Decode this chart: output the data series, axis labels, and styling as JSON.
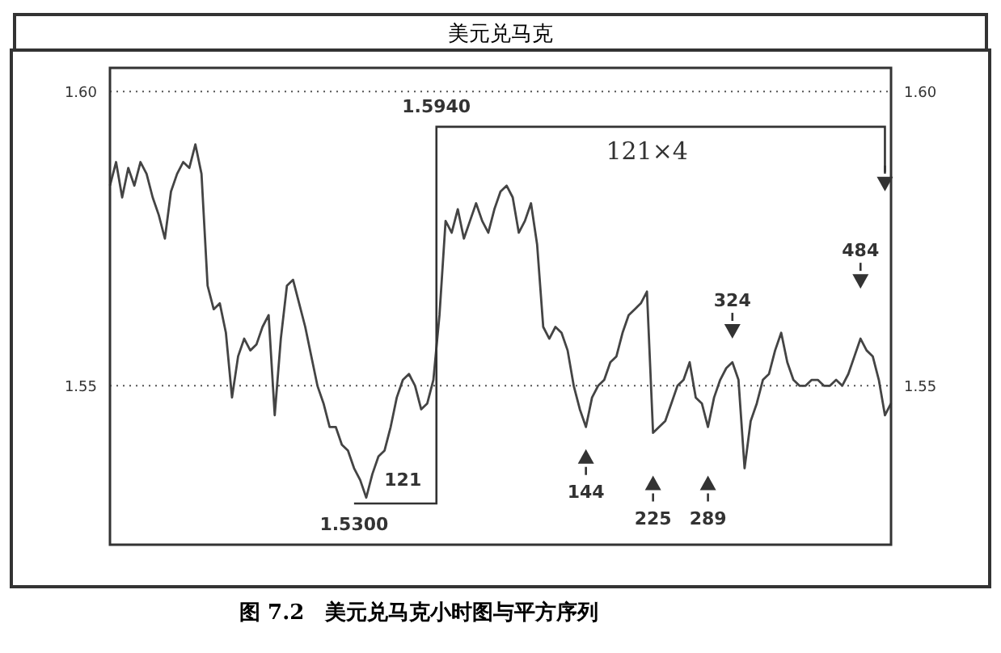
{
  "chart_data": {
    "type": "line",
    "title": "美元兑马克",
    "categories": [
      null,
      null,
      null,
      null,
      null,
      null,
      null,
      null,
      null,
      null,
      null,
      null,
      null,
      null,
      null,
      null,
      null,
      null,
      null,
      null,
      null,
      null,
      null,
      null,
      null,
      null,
      null,
      null,
      null,
      null,
      null,
      null,
      null,
      null,
      null,
      null,
      null,
      null,
      null,
      null,
      null,
      null,
      null,
      null,
      null,
      null,
      null,
      null,
      null,
      null,
      null,
      null,
      null,
      null,
      null,
      null,
      null,
      null,
      null,
      null,
      null,
      null,
      null,
      null,
      null,
      null,
      null,
      null,
      null,
      null,
      null,
      null,
      null,
      null,
      null,
      null,
      null,
      null,
      null,
      null,
      null,
      null,
      null,
      null,
      null,
      null,
      null,
      null,
      null,
      null,
      null,
      null,
      null,
      null,
      null,
      null,
      null,
      null,
      null,
      null,
      null,
      null,
      null,
      null,
      null,
      null,
      null,
      null,
      null,
      null,
      null,
      null,
      null,
      null,
      null,
      null,
      null,
      null,
      null,
      null,
      null,
      null,
      null,
      null,
      null,
      null,
      null,
      null,
      null
    ],
    "series": [
      {
        "color": "#444444",
        "values": [
          1.584,
          1.588,
          1.582,
          1.587,
          1.584,
          1.588,
          1.586,
          1.582,
          1.579,
          1.575,
          1.583,
          1.586,
          1.588,
          1.587,
          1.591,
          1.586,
          1.567,
          1.563,
          1.564,
          1.559,
          1.548,
          1.555,
          1.558,
          1.556,
          1.557,
          1.56,
          1.562,
          1.545,
          1.558,
          1.567,
          1.568,
          1.564,
          1.56,
          1.555,
          1.55,
          1.547,
          1.543,
          1.543,
          1.54,
          1.539,
          1.536,
          1.534,
          1.531,
          1.535,
          1.538,
          1.539,
          1.543,
          1.548,
          1.551,
          1.552,
          1.55,
          1.546,
          1.547,
          1.551,
          1.562,
          1.578,
          1.576,
          1.58,
          1.575,
          1.578,
          1.581,
          1.578,
          1.576,
          1.58,
          1.583,
          1.584,
          1.582,
          1.576,
          1.578,
          1.581,
          1.574,
          1.56,
          1.558,
          1.56,
          1.559,
          1.556,
          1.55,
          1.546,
          1.543,
          1.548,
          1.55,
          1.551,
          1.554,
          1.555,
          1.559,
          1.562,
          1.563,
          1.564,
          1.566,
          1.542,
          1.543,
          1.544,
          1.547,
          1.55,
          1.551,
          1.554,
          1.548,
          1.547,
          1.543,
          1.548,
          1.551,
          1.553,
          1.554,
          1.551,
          1.536,
          1.544,
          1.547,
          1.551,
          1.552,
          1.556,
          1.559,
          1.554,
          1.551,
          1.55,
          1.55,
          1.551,
          1.551,
          1.55,
          1.55,
          1.551,
          1.55,
          1.552,
          1.555,
          1.558,
          1.556,
          1.555,
          1.551,
          1.545,
          1.547
        ]
      }
    ],
    "ylim": [
      1.523,
      1.604
    ],
    "yticks": [
      1.55,
      {
        "value": 1.6,
        "label": "1.60"
      }
    ],
    "y2lim": [
      1.523,
      1.604
    ],
    "y2ticks": [
      1.55,
      {
        "value": 1.6,
        "label": "1.60"
      }
    ],
    "grid": "y",
    "tick_labels": "y",
    "annotations": [
      "1.5940",
      "1.5300",
      "121",
      "121×4",
      "144",
      "225",
      "289",
      "324",
      "484",
      "图 7.2　美元兑马克小时图与平方序列"
    ]
  }
}
